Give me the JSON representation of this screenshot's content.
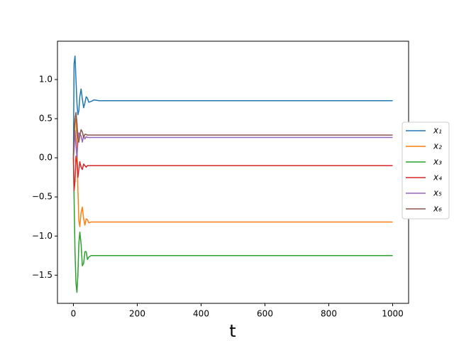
{
  "chart_data": {
    "type": "line",
    "x_label": "t",
    "x": [
      0,
      2,
      5,
      8,
      11,
      14,
      17,
      20,
      24,
      28,
      32,
      36,
      40,
      44,
      48,
      55,
      65,
      80,
      100,
      1000
    ],
    "series": [
      {
        "name": "x₁",
        "color": "#1f77b4",
        "values": [
          0,
          1.2,
          1.3,
          1.0,
          0.7,
          0.55,
          0.6,
          0.78,
          0.88,
          0.75,
          0.64,
          0.7,
          0.78,
          0.76,
          0.71,
          0.72,
          0.74,
          0.73,
          0.73,
          0.73
        ]
      },
      {
        "name": "x₂",
        "color": "#ff7f0e",
        "values": [
          0,
          0.2,
          0.45,
          0.5,
          0.2,
          -0.4,
          -0.8,
          -0.88,
          -0.7,
          -0.63,
          -0.78,
          -0.86,
          -0.78,
          -0.79,
          -0.83,
          -0.82,
          -0.82,
          -0.82,
          -0.82,
          -0.82
        ]
      },
      {
        "name": "x₃",
        "color": "#2ca02c",
        "values": [
          0,
          -0.5,
          -1.2,
          -1.6,
          -1.72,
          -1.5,
          -1.1,
          -0.95,
          -1.1,
          -1.38,
          -1.35,
          -1.2,
          -1.2,
          -1.3,
          -1.27,
          -1.25,
          -1.25,
          -1.25,
          -1.25,
          -1.25
        ]
      },
      {
        "name": "x₄",
        "color": "#d62728",
        "values": [
          0,
          -0.42,
          -0.3,
          0.02,
          -0.05,
          -0.25,
          -0.15,
          -0.05,
          -0.12,
          -0.15,
          -0.08,
          -0.1,
          -0.12,
          -0.1,
          -0.1,
          -0.1,
          -0.1,
          -0.1,
          -0.1,
          -0.1
        ]
      },
      {
        "name": "x₅",
        "color": "#9467bd",
        "values": [
          0,
          0.1,
          0.35,
          0.15,
          0.0,
          0.2,
          0.32,
          0.3,
          0.28,
          0.2,
          0.28,
          0.24,
          0.27,
          0.26,
          0.26,
          0.26,
          0.26,
          0.26,
          0.26,
          0.26
        ]
      },
      {
        "name": "x₆",
        "color": "#8c564b",
        "values": [
          0,
          0.3,
          0.5,
          0.58,
          0.45,
          0.25,
          0.2,
          0.28,
          0.36,
          0.33,
          0.26,
          0.3,
          0.3,
          0.29,
          0.29,
          0.29,
          0.29,
          0.29,
          0.29,
          0.29
        ]
      }
    ],
    "xlim": [
      -50,
      1050
    ],
    "xticks": [
      0,
      200,
      400,
      600,
      800,
      1000
    ],
    "ylim": [
      -1.86,
      1.49
    ],
    "yticks": [
      {
        "value": -1.5,
        "label": "−1.5"
      },
      {
        "value": -1.0,
        "label": "−1.0"
      },
      {
        "value": -0.5,
        "label": "−0.5"
      },
      {
        "value": 0,
        "label": "0.0"
      },
      {
        "value": 0.5,
        "label": "0.5"
      },
      {
        "value": 1.0,
        "label": "1.0"
      }
    ],
    "grid": false,
    "legend": "right"
  }
}
